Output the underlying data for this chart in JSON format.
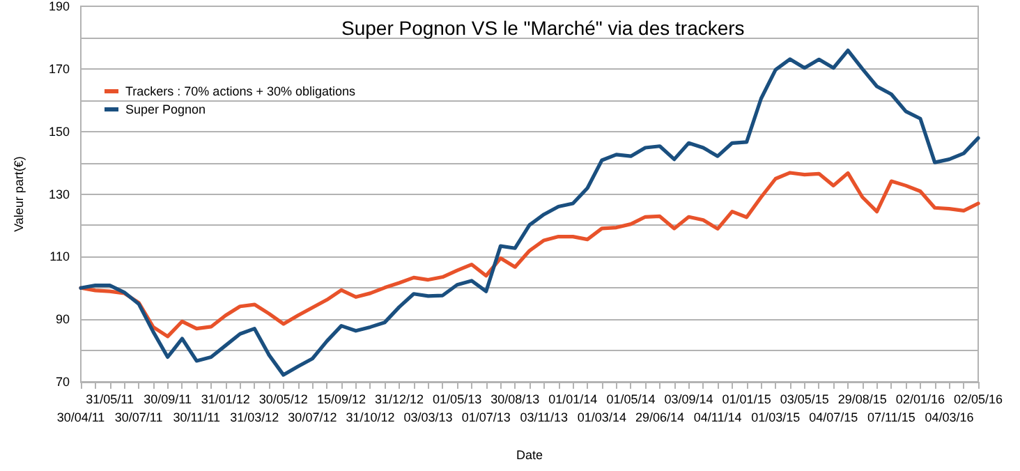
{
  "chart_data": {
    "type": "line",
    "title": "Super Pognon VS le \"Marché\" via des trackers",
    "xlabel": "Date",
    "ylabel": "Valeur part(€)",
    "categories": [
      "30/04/11",
      null,
      "31/05/11",
      null,
      "30/07/11",
      null,
      "30/09/11",
      null,
      "30/11/11",
      null,
      "31/01/12",
      null,
      "31/03/12",
      null,
      "30/05/12",
      null,
      "30/07/12",
      null,
      "15/09/12",
      null,
      "31/10/12",
      null,
      "31/12/12",
      null,
      "03/03/13",
      null,
      "01/05/13",
      null,
      "01/07/13",
      null,
      "30/08/13",
      null,
      "03/11/13",
      null,
      "01/01/14",
      null,
      "01/03/14",
      null,
      "01/05/14",
      null,
      "29/06/14",
      null,
      "03/09/14",
      null,
      "04/11/14",
      null,
      "01/01/15",
      null,
      "01/03/15",
      null,
      "03/05/15",
      null,
      "04/07/15",
      null,
      "29/08/15",
      null,
      "07/11/15",
      null,
      "02/01/16",
      null,
      "04/03/16",
      null,
      "02/05/16"
    ],
    "series": [
      {
        "name": "Trackers : 70% actions + 30% obligations",
        "color": "#e8522a",
        "values": [
          100,
          99.2,
          98.9,
          98.3,
          95.3,
          87.5,
          84.5,
          89.3,
          87,
          87.6,
          91.2,
          94.1,
          94.7,
          91.8,
          88.5,
          91.2,
          93.7,
          96.2,
          99.3,
          97.1,
          98.3,
          100.1,
          101.6,
          103.3,
          102.6,
          103.5,
          105.6,
          107.5,
          103.9,
          109.5,
          106.7,
          111.9,
          115.2,
          116.4,
          116.4,
          115.5,
          119,
          119.3,
          120.4,
          122.7,
          122.9,
          119,
          122.7,
          121.7,
          118.9,
          124.4,
          122.6,
          129,
          134.9,
          136.8,
          136.2,
          136.5,
          132.7,
          136.7,
          129,
          124.4,
          134.1,
          132.7,
          130.9,
          125.6,
          125.3,
          124.7,
          127
        ]
      },
      {
        "name": "Super Pognon",
        "color": "#1a4f7f",
        "values": [
          100,
          100.8,
          100.8,
          98.6,
          94.9,
          86,
          77.9,
          83.8,
          76.7,
          77.9,
          81.6,
          85.3,
          87,
          78.6,
          72.2,
          74.9,
          77.4,
          83,
          87.9,
          86.3,
          87.5,
          89,
          93.9,
          98.1,
          97.4,
          97.6,
          101,
          102.3,
          98.9,
          113.4,
          112.7,
          120.1,
          123.5,
          126,
          127,
          131.9,
          140.8,
          142.6,
          142.1,
          144.8,
          145.3,
          141.1,
          146.3,
          144.8,
          142.1,
          146.3,
          146.6,
          160.5,
          169.7,
          173.1,
          170.3,
          173,
          170.3,
          175.9,
          170,
          164.4,
          161.9,
          156.4,
          154.1,
          140.1,
          141.1,
          143,
          147.9
        ]
      }
    ],
    "ylim": [
      70,
      190
    ],
    "yticks": [
      70,
      {
        "value": 80,
        "label": null
      },
      90,
      {
        "value": 100,
        "label": null
      },
      110,
      {
        "value": 120,
        "label": null
      },
      130,
      {
        "value": 140,
        "label": null
      },
      150,
      {
        "value": 160,
        "label": null
      },
      170,
      {
        "value": 180,
        "label": null
      },
      190
    ],
    "grid": "y",
    "legend": "top left",
    "marker": "none",
    "line_style": "solid"
  }
}
